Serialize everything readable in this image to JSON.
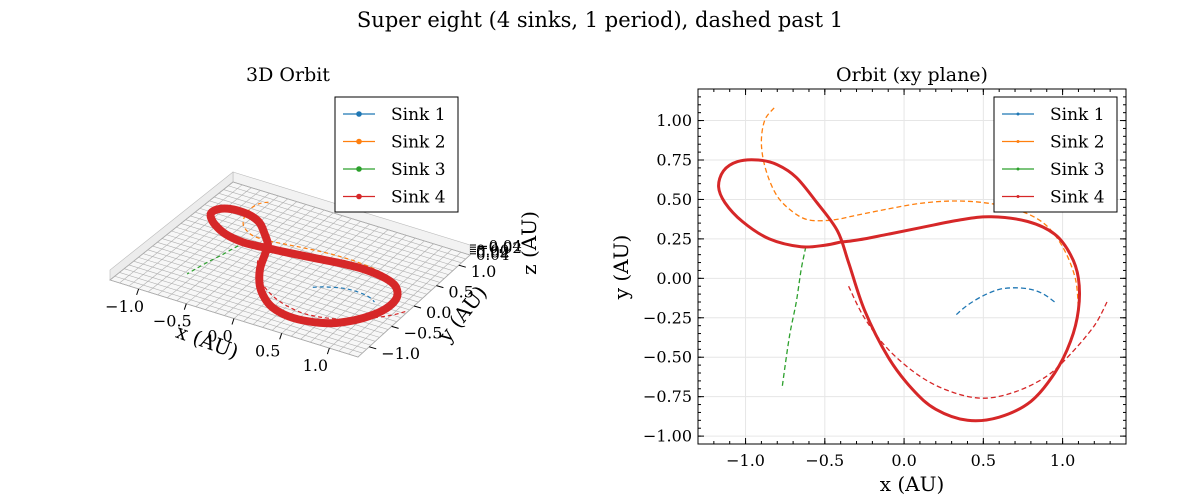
{
  "figure": {
    "suptitle": "Super eight (4 sinks, 1 period), dashed past 1"
  },
  "colors": {
    "sink1": "#1f77b4",
    "sink2": "#ff7f0e",
    "sink3": "#2ca02c",
    "sink4": "#d62728"
  },
  "chart_data": [
    {
      "type": "line",
      "projection": "3d",
      "title": "3D Orbit",
      "xlabel": "x (AU)",
      "ylabel": "y (AU)",
      "zlabel": "z (AU)",
      "xticks": [
        "−1.0",
        "−0.5",
        "0.0",
        "0.5",
        "1.0"
      ],
      "yticks": [
        "−1.0",
        "−0.5",
        "0.0",
        "0.5",
        "1.0"
      ],
      "zticks": [
        "−0.04",
        "−0.02",
        "0.00",
        "0.02",
        "0.04"
      ],
      "grid": true,
      "legend": "top-right",
      "series": [
        {
          "name": "Sink 1",
          "color": "#1f77b4"
        },
        {
          "name": "Sink 2",
          "color": "#ff7f0e"
        },
        {
          "name": "Sink 3",
          "color": "#2ca02c"
        },
        {
          "name": "Sink 4",
          "color": "#d62728"
        }
      ]
    },
    {
      "type": "line",
      "title": "Orbit (xy plane)",
      "xlabel": "x (AU)",
      "ylabel": "y (AU)",
      "xlim": [
        -1.3,
        1.4
      ],
      "ylim": [
        -1.05,
        1.2
      ],
      "xticks": [
        -1.0,
        -0.5,
        0.0,
        0.5,
        1.0
      ],
      "xtick_labels": [
        "−1.0",
        "−0.5",
        "0.0",
        "0.5",
        "1.0"
      ],
      "yticks": [
        1.0,
        0.75,
        0.5,
        0.25,
        0.0,
        -0.25,
        -0.5,
        -0.75,
        -1.0
      ],
      "ytick_labels": [
        "1.00",
        "0.75",
        "0.50",
        "0.25",
        "0.00",
        "−0.25",
        "−0.50",
        "−0.75",
        "−1.00"
      ],
      "grid": true,
      "legend": "top-right",
      "main_orbit": {
        "x": [
          -0.4,
          -0.5,
          -0.65,
          -0.85,
          -1.02,
          -1.13,
          -1.17,
          -1.14,
          -1.05,
          -0.92,
          -0.8,
          -0.68,
          -0.55,
          -0.42,
          -0.35,
          -0.25,
          -0.1,
          0.05,
          0.2,
          0.4,
          0.6,
          0.8,
          0.95,
          1.05,
          1.1,
          1.1,
          1.05,
          0.95,
          0.78,
          0.55,
          0.35,
          0.1,
          -0.1,
          -0.25,
          -0.35,
          -0.4
        ],
        "y": [
          0.23,
          0.21,
          0.2,
          0.25,
          0.36,
          0.48,
          0.58,
          0.68,
          0.74,
          0.75,
          0.72,
          0.64,
          0.48,
          0.3,
          0.1,
          -0.2,
          -0.5,
          -0.7,
          -0.83,
          -0.9,
          -0.88,
          -0.78,
          -0.6,
          -0.4,
          -0.2,
          0.0,
          0.15,
          0.28,
          0.36,
          0.39,
          0.37,
          0.32,
          0.28,
          0.25,
          0.235,
          0.23
        ]
      },
      "series": [
        {
          "name": "Sink 1",
          "color": "#1f77b4",
          "tail_x": [
            0.33,
            0.4,
            0.5,
            0.6,
            0.7,
            0.8,
            0.88,
            0.95
          ],
          "tail_y": [
            -0.23,
            -0.17,
            -0.11,
            -0.07,
            -0.06,
            -0.07,
            -0.1,
            -0.15
          ]
        },
        {
          "name": "Sink 2",
          "color": "#ff7f0e",
          "tail_x": [
            -0.82,
            -0.88,
            -0.9,
            -0.87,
            -0.8,
            -0.7,
            -0.6,
            -0.45,
            -0.3,
            -0.1,
            0.1,
            0.3,
            0.5,
            0.7,
            0.88,
            1.0,
            1.08,
            1.1
          ],
          "tail_y": [
            1.08,
            1.0,
            0.85,
            0.68,
            0.52,
            0.42,
            0.37,
            0.37,
            0.4,
            0.44,
            0.475,
            0.49,
            0.48,
            0.44,
            0.35,
            0.2,
            0.0,
            -0.2
          ]
        },
        {
          "name": "Sink 3",
          "color": "#2ca02c",
          "tail_x": [
            -0.62,
            -0.65,
            -0.68,
            -0.72,
            -0.75,
            -0.77
          ],
          "tail_y": [
            0.2,
            0.05,
            -0.15,
            -0.35,
            -0.55,
            -0.7
          ]
        },
        {
          "name": "Sink 4",
          "color": "#d62728",
          "tail_x": [
            -0.35,
            -0.25,
            -0.1,
            0.1,
            0.3,
            0.5,
            0.7,
            0.9,
            1.05,
            1.2,
            1.28
          ],
          "tail_y": [
            -0.05,
            -0.25,
            -0.45,
            -0.62,
            -0.72,
            -0.76,
            -0.72,
            -0.62,
            -0.48,
            -0.3,
            -0.15
          ]
        }
      ]
    }
  ]
}
